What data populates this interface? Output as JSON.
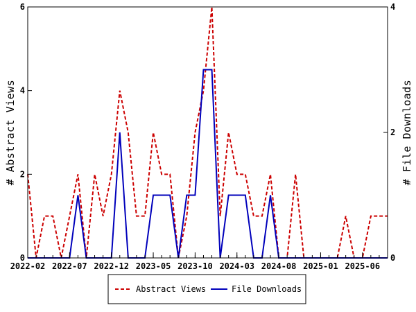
{
  "chart_data": {
    "type": "line",
    "x": [
      "2022-02",
      "2022-03",
      "2022-04",
      "2022-05",
      "2022-06",
      "2022-07",
      "2022-08",
      "2022-09",
      "2022-10",
      "2022-11",
      "2022-12",
      "2023-01",
      "2023-02",
      "2023-03",
      "2023-04",
      "2023-05",
      "2023-06",
      "2023-07",
      "2023-08",
      "2023-09",
      "2023-10",
      "2023-11",
      "2023-12",
      "2024-01",
      "2024-02",
      "2024-03",
      "2024-04",
      "2024-05",
      "2024-06",
      "2024-07",
      "2024-08",
      "2024-09",
      "2024-10",
      "2024-11",
      "2024-12",
      "2025-01",
      "2025-02",
      "2025-03",
      "2025-04",
      "2025-05",
      "2025-06",
      "2025-07",
      "2025-08",
      "2025-09"
    ],
    "x_tick_labels": [
      "2022-02",
      "2022-07",
      "2022-12",
      "2023-05",
      "2023-10",
      "2024-03",
      "2024-08",
      "2025-01",
      "2025-06"
    ],
    "series": [
      {
        "name": "Abstract Views",
        "axis": "left",
        "color": "#cc0000",
        "style": "dashed",
        "values": [
          2,
          0,
          1,
          1,
          0,
          1,
          2,
          0,
          2,
          1,
          2,
          4,
          3,
          1,
          1,
          3,
          2,
          2,
          0,
          1,
          3,
          4,
          6,
          1,
          3,
          2,
          2,
          1,
          1,
          2,
          0,
          0,
          2,
          0,
          0,
          0,
          0,
          0,
          1,
          0,
          0,
          1,
          1,
          1
        ]
      },
      {
        "name": "File Downloads",
        "axis": "right",
        "color": "#0000bb",
        "style": "solid",
        "values": [
          0,
          0,
          0,
          0,
          0,
          0,
          1,
          0,
          0,
          0,
          0,
          2,
          0,
          0,
          0,
          1,
          1,
          1,
          0,
          1,
          1,
          3,
          3,
          0,
          1,
          1,
          1,
          0,
          0,
          1,
          0,
          0,
          0,
          0,
          0,
          0,
          0,
          0,
          0,
          0,
          0,
          0,
          0,
          0
        ]
      }
    ],
    "ylabel": "# Abstract Views",
    "y2label": "# File Downloads",
    "ylim": [
      0,
      6
    ],
    "y2lim": [
      0,
      4
    ],
    "y_ticks": [
      0,
      2,
      4,
      6
    ],
    "y2_ticks": [
      0,
      2,
      4
    ],
    "legend_position": "bottom-center",
    "grid": false
  }
}
